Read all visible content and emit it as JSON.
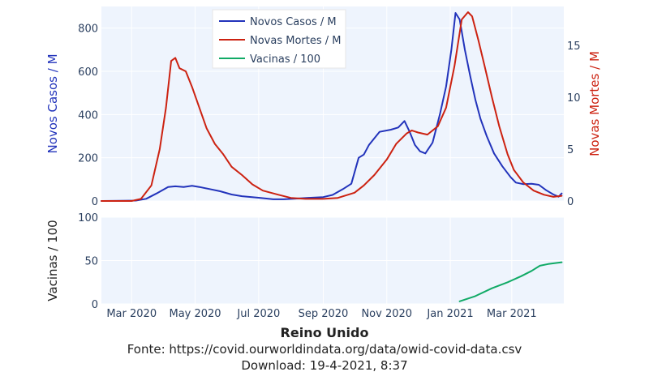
{
  "chart_data": [
    {
      "type": "line",
      "panel": "top",
      "xlabel": "",
      "ylabel": "Novos Casos / M",
      "ylabel_right": "Novas Mortes / M",
      "ylim": [
        0,
        900
      ],
      "ylim_right": [
        0,
        18.75
      ],
      "yticks": [
        0,
        200,
        400,
        600,
        800
      ],
      "yticks_right": [
        0,
        5,
        10,
        15
      ],
      "legend_position": "top-center",
      "grid": true,
      "series": [
        {
          "name": "Novos Casos / M",
          "axis": "left",
          "color": "#2233bb",
          "points": [
            [
              "2020-02-01",
              0
            ],
            [
              "2020-02-20",
              1
            ],
            [
              "2020-03-05",
              2
            ],
            [
              "2020-03-15",
              10
            ],
            [
              "2020-03-25",
              35
            ],
            [
              "2020-04-05",
              65
            ],
            [
              "2020-04-12",
              68
            ],
            [
              "2020-04-20",
              65
            ],
            [
              "2020-04-28",
              70
            ],
            [
              "2020-05-05",
              65
            ],
            [
              "2020-05-15",
              55
            ],
            [
              "2020-05-25",
              45
            ],
            [
              "2020-06-05",
              30
            ],
            [
              "2020-06-15",
              22
            ],
            [
              "2020-07-01",
              15
            ],
            [
              "2020-07-15",
              8
            ],
            [
              "2020-07-25",
              8
            ],
            [
              "2020-08-05",
              11
            ],
            [
              "2020-08-20",
              15
            ],
            [
              "2020-09-01",
              18
            ],
            [
              "2020-09-10",
              28
            ],
            [
              "2020-09-20",
              55
            ],
            [
              "2020-09-28",
              80
            ],
            [
              "2020-10-05",
              200
            ],
            [
              "2020-10-10",
              215
            ],
            [
              "2020-10-15",
              260
            ],
            [
              "2020-10-25",
              320
            ],
            [
              "2020-11-05",
              330
            ],
            [
              "2020-11-12",
              340
            ],
            [
              "2020-11-18",
              370
            ],
            [
              "2020-11-23",
              320
            ],
            [
              "2020-11-28",
              260
            ],
            [
              "2020-12-03",
              230
            ],
            [
              "2020-12-08",
              220
            ],
            [
              "2020-12-15",
              270
            ],
            [
              "2020-12-22",
              400
            ],
            [
              "2020-12-28",
              530
            ],
            [
              "2021-01-02",
              700
            ],
            [
              "2021-01-06",
              870
            ],
            [
              "2021-01-10",
              840
            ],
            [
              "2021-01-15",
              700
            ],
            [
              "2021-01-20",
              580
            ],
            [
              "2021-01-25",
              470
            ],
            [
              "2021-01-30",
              380
            ],
            [
              "2021-02-05",
              300
            ],
            [
              "2021-02-12",
              220
            ],
            [
              "2021-02-20",
              160
            ],
            [
              "2021-02-28",
              110
            ],
            [
              "2021-03-05",
              85
            ],
            [
              "2021-03-12",
              78
            ],
            [
              "2021-03-20",
              80
            ],
            [
              "2021-03-27",
              75
            ],
            [
              "2021-04-03",
              50
            ],
            [
              "2021-04-10",
              30
            ],
            [
              "2021-04-15",
              20
            ],
            [
              "2021-04-18",
              35
            ]
          ]
        },
        {
          "name": "Novas Mortes / M",
          "axis": "right",
          "color": "#cc2211",
          "points": [
            [
              "2020-02-01",
              0
            ],
            [
              "2020-03-01",
              0
            ],
            [
              "2020-03-10",
              0.2
            ],
            [
              "2020-03-20",
              1.5
            ],
            [
              "2020-03-28",
              5
            ],
            [
              "2020-04-03",
              9
            ],
            [
              "2020-04-08",
              13.5
            ],
            [
              "2020-04-12",
              13.8
            ],
            [
              "2020-04-16",
              12.8
            ],
            [
              "2020-04-22",
              12.5
            ],
            [
              "2020-04-28",
              11
            ],
            [
              "2020-05-05",
              9
            ],
            [
              "2020-05-12",
              7
            ],
            [
              "2020-05-20",
              5.5
            ],
            [
              "2020-05-28",
              4.5
            ],
            [
              "2020-06-05",
              3.3
            ],
            [
              "2020-06-15",
              2.5
            ],
            [
              "2020-06-25",
              1.6
            ],
            [
              "2020-07-05",
              1
            ],
            [
              "2020-07-20",
              0.6
            ],
            [
              "2020-08-01",
              0.3
            ],
            [
              "2020-08-15",
              0.2
            ],
            [
              "2020-09-01",
              0.2
            ],
            [
              "2020-09-15",
              0.3
            ],
            [
              "2020-10-01",
              0.8
            ],
            [
              "2020-10-10",
              1.5
            ],
            [
              "2020-10-20",
              2.5
            ],
            [
              "2020-11-01",
              4
            ],
            [
              "2020-11-10",
              5.5
            ],
            [
              "2020-11-20",
              6.5
            ],
            [
              "2020-11-25",
              6.8
            ],
            [
              "2020-12-01",
              6.6
            ],
            [
              "2020-12-10",
              6.4
            ],
            [
              "2020-12-20",
              7.2
            ],
            [
              "2020-12-28",
              9
            ],
            [
              "2021-01-05",
              13
            ],
            [
              "2021-01-12",
              17.5
            ],
            [
              "2021-01-18",
              18.2
            ],
            [
              "2021-01-22",
              17.8
            ],
            [
              "2021-01-28",
              15.5
            ],
            [
              "2021-02-03",
              13
            ],
            [
              "2021-02-10",
              10
            ],
            [
              "2021-02-17",
              7.2
            ],
            [
              "2021-02-25",
              4.5
            ],
            [
              "2021-03-03",
              3
            ],
            [
              "2021-03-12",
              1.8
            ],
            [
              "2021-03-22",
              1
            ],
            [
              "2021-04-01",
              0.6
            ],
            [
              "2021-04-10",
              0.4
            ],
            [
              "2021-04-18",
              0.5
            ]
          ]
        }
      ]
    },
    {
      "type": "line",
      "panel": "bottom",
      "xlabel": "",
      "ylabel": "Vacinas / 100",
      "ylim": [
        0,
        100
      ],
      "yticks": [
        0,
        50,
        100
      ],
      "grid": true,
      "series": [
        {
          "name": "Vacinas / 100",
          "color": "#11aa66",
          "points": [
            [
              "2021-01-10",
              3
            ],
            [
              "2021-01-25",
              9
            ],
            [
              "2021-02-10",
              18
            ],
            [
              "2021-02-25",
              25
            ],
            [
              "2021-03-10",
              32
            ],
            [
              "2021-03-20",
              38
            ],
            [
              "2021-03-28",
              44
            ],
            [
              "2021-04-05",
              46
            ],
            [
              "2021-04-18",
              48
            ]
          ]
        }
      ]
    }
  ],
  "x_axis": {
    "range": [
      "2020-02-01",
      "2021-04-20"
    ],
    "ticks": [
      {
        "date": "2020-03-01",
        "label": "Mar 2020"
      },
      {
        "date": "2020-05-01",
        "label": "May 2020"
      },
      {
        "date": "2020-07-01",
        "label": "Jul 2020"
      },
      {
        "date": "2020-09-01",
        "label": "Sep 2020"
      },
      {
        "date": "2020-11-01",
        "label": "Nov 2020"
      },
      {
        "date": "2021-01-01",
        "label": "Jan 2021"
      },
      {
        "date": "2021-03-01",
        "label": "Mar 2021"
      }
    ]
  },
  "footer": {
    "title": "Reino Unido",
    "source": "Fonte: https://covid.ourworldindata.org/data/owid-covid-data.csv",
    "download": "Download: 19-4-2021, 8:37"
  },
  "colors": {
    "plot_background": "#eef4fd",
    "grid": "#ffffff",
    "left_axis_label": "#2233bb",
    "right_axis_label": "#cc2211"
  }
}
